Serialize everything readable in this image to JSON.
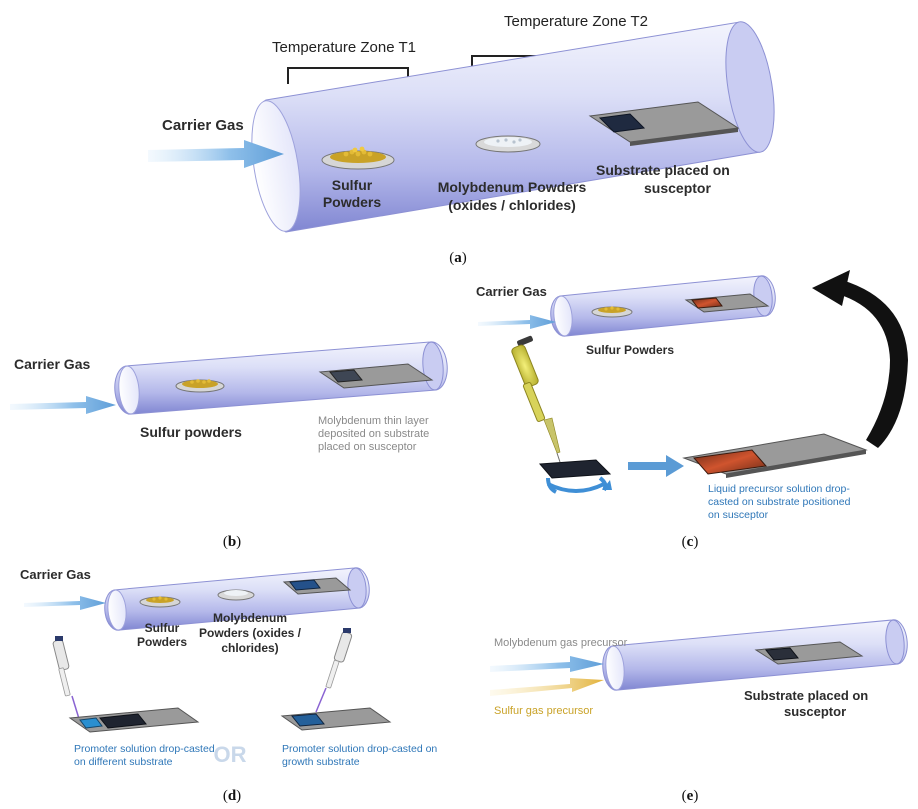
{
  "panel_a": {
    "zone_t1": "Temperature Zone T1",
    "zone_t2": "Temperature Zone T2",
    "carrier_gas": "Carrier Gas",
    "sulfur_line1": "Sulfur",
    "sulfur_line2": "Powders",
    "moly_line1": "Molybdenum Powders",
    "moly_line2": "(oxides / chlorides)",
    "substrate_line1": "Substrate placed on",
    "substrate_line2": "susceptor",
    "caption_letter": "a"
  },
  "panel_b": {
    "carrier_gas": "Carrier Gas",
    "sulfur": "Sulfur powders",
    "moly_line1": "Molybdenum thin layer",
    "moly_line2": "deposited on substrate",
    "moly_line3": "placed on susceptor",
    "caption_letter": "b"
  },
  "panel_c": {
    "carrier_gas": "Carrier Gas",
    "sulfur": "Sulfur Powders",
    "liquid_line1": "Liquid precursor solution drop-",
    "liquid_line2": "casted on substrate positioned",
    "liquid_line3": "on susceptor",
    "caption_letter": "c"
  },
  "panel_d": {
    "carrier_gas": "Carrier Gas",
    "sulfur_line1": "Sulfur",
    "sulfur_line2": "Powders",
    "moly_line1": "Molybdenum",
    "moly_line2": "Powders (oxides /",
    "moly_line3": "chlorides)",
    "promoter_left_line1": "Promoter solution drop-casted",
    "promoter_left_line2": "on different substrate",
    "or_text": "OR",
    "promoter_right_line1": "Promoter solution drop-casted on",
    "promoter_right_line2": "growth substrate",
    "caption_letter": "d"
  },
  "panel_e": {
    "moly_gas": "Molybdenum gas precursor",
    "sulfur_gas": "Sulfur gas precursor",
    "substrate_line1": "Substrate placed on",
    "substrate_line2": "susceptor",
    "caption_letter": "e"
  },
  "colors": {
    "tube_light": "#f1f2fc",
    "tube_mid": "#c3c6ef",
    "tube_dark": "#7d82cf",
    "arrow_blue": "#6aa3da",
    "label_blue": "#2f77b8",
    "sulfur_gold": "#c9a227",
    "label_gray": "#8a8a8a"
  }
}
